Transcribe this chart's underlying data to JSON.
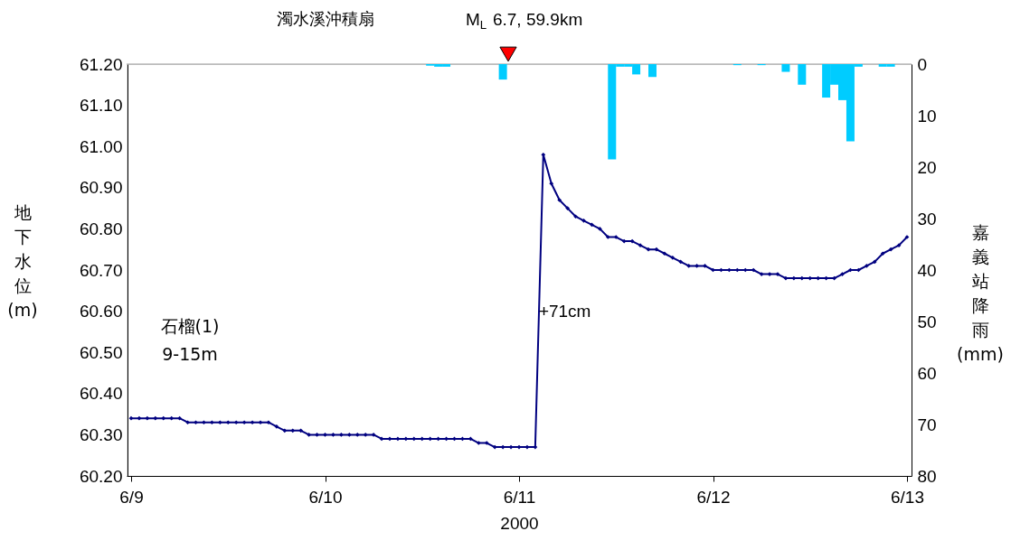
{
  "chart_data": {
    "type": "line",
    "title": "濁水溪沖積扇",
    "xlabel": "2000",
    "ylabel": "地下水位(m)",
    "y2label": "嘉義站降雨(mm)",
    "xlim": [
      "2000-06-09T00:00",
      "2000-06-13T00:00"
    ],
    "xticks": [
      {
        "value": "2000-06-09T00:00",
        "label": "6/9"
      },
      {
        "value": "2000-06-10T00:00",
        "label": "6/10"
      },
      {
        "value": "2000-06-11T00:00",
        "label": "6/11"
      },
      {
        "value": "2000-06-12T00:00",
        "label": "6/12"
      },
      {
        "value": "2000-06-13T00:00",
        "label": "6/13"
      }
    ],
    "ylim": [
      60.2,
      61.2
    ],
    "yticks": [
      {
        "value": 60.2,
        "label": "60.20"
      },
      {
        "value": 60.3,
        "label": "60.30"
      },
      {
        "value": 60.4,
        "label": "60.40"
      },
      {
        "value": 60.5,
        "label": "60.50"
      },
      {
        "value": 60.6,
        "label": "60.60"
      },
      {
        "value": 60.7,
        "label": "60.70"
      },
      {
        "value": 60.8,
        "label": "60.80"
      },
      {
        "value": 60.9,
        "label": "60.90"
      },
      {
        "value": 61.0,
        "label": "61.00"
      },
      {
        "value": 61.1,
        "label": "61.10"
      },
      {
        "value": 61.2,
        "label": "61.20"
      }
    ],
    "y2lim": [
      80,
      0
    ],
    "y2ticks": [
      0,
      10,
      20,
      30,
      40,
      50,
      60,
      70,
      80
    ],
    "grid": false,
    "marker": "diamond",
    "line_style": "solid",
    "series": [
      {
        "color": "#000080",
        "x": [
          "2000-06-09T00:00",
          "2000-06-09T01:00",
          "2000-06-09T02:00",
          "2000-06-09T03:00",
          "2000-06-09T04:00",
          "2000-06-09T05:00",
          "2000-06-09T06:00",
          "2000-06-09T07:00",
          "2000-06-09T08:00",
          "2000-06-09T09:00",
          "2000-06-09T10:00",
          "2000-06-09T11:00",
          "2000-06-09T12:00",
          "2000-06-09T13:00",
          "2000-06-09T14:00",
          "2000-06-09T15:00",
          "2000-06-09T16:00",
          "2000-06-09T17:00",
          "2000-06-09T18:00",
          "2000-06-09T19:00",
          "2000-06-09T20:00",
          "2000-06-09T21:00",
          "2000-06-09T22:00",
          "2000-06-09T23:00",
          "2000-06-10T00:00",
          "2000-06-10T01:00",
          "2000-06-10T02:00",
          "2000-06-10T03:00",
          "2000-06-10T04:00",
          "2000-06-10T05:00",
          "2000-06-10T06:00",
          "2000-06-10T07:00",
          "2000-06-10T08:00",
          "2000-06-10T09:00",
          "2000-06-10T10:00",
          "2000-06-10T11:00",
          "2000-06-10T12:00",
          "2000-06-10T13:00",
          "2000-06-10T14:00",
          "2000-06-10T15:00",
          "2000-06-10T16:00",
          "2000-06-10T17:00",
          "2000-06-10T18:00",
          "2000-06-10T19:00",
          "2000-06-10T20:00",
          "2000-06-10T21:00",
          "2000-06-10T22:00",
          "2000-06-10T23:00",
          "2000-06-11T00:00",
          "2000-06-11T01:00",
          "2000-06-11T02:00",
          "2000-06-11T03:00",
          "2000-06-11T04:00",
          "2000-06-11T05:00",
          "2000-06-11T06:00",
          "2000-06-11T07:00",
          "2000-06-11T08:00",
          "2000-06-11T09:00",
          "2000-06-11T10:00",
          "2000-06-11T11:00",
          "2000-06-11T12:00",
          "2000-06-11T13:00",
          "2000-06-11T14:00",
          "2000-06-11T15:00",
          "2000-06-11T16:00",
          "2000-06-11T17:00",
          "2000-06-11T18:00",
          "2000-06-11T19:00",
          "2000-06-11T20:00",
          "2000-06-11T21:00",
          "2000-06-11T22:00",
          "2000-06-11T23:00",
          "2000-06-12T00:00",
          "2000-06-12T01:00",
          "2000-06-12T02:00",
          "2000-06-12T03:00",
          "2000-06-12T04:00",
          "2000-06-12T05:00",
          "2000-06-12T06:00",
          "2000-06-12T07:00",
          "2000-06-12T08:00",
          "2000-06-12T09:00",
          "2000-06-12T10:00",
          "2000-06-12T11:00",
          "2000-06-12T12:00",
          "2000-06-12T13:00",
          "2000-06-12T14:00",
          "2000-06-12T15:00",
          "2000-06-12T16:00",
          "2000-06-12T17:00",
          "2000-06-12T18:00",
          "2000-06-12T19:00",
          "2000-06-12T20:00",
          "2000-06-12T21:00",
          "2000-06-12T22:00",
          "2000-06-12T23:00",
          "2000-06-13T00:00"
        ],
        "values": [
          60.34,
          60.34,
          60.34,
          60.34,
          60.34,
          60.34,
          60.34,
          60.33,
          60.33,
          60.33,
          60.33,
          60.33,
          60.33,
          60.33,
          60.33,
          60.33,
          60.33,
          60.33,
          60.32,
          60.31,
          60.31,
          60.31,
          60.3,
          60.3,
          60.3,
          60.3,
          60.3,
          60.3,
          60.3,
          60.3,
          60.3,
          60.29,
          60.29,
          60.29,
          60.29,
          60.29,
          60.29,
          60.29,
          60.29,
          60.29,
          60.29,
          60.29,
          60.29,
          60.28,
          60.28,
          60.27,
          60.27,
          60.27,
          60.27,
          60.27,
          60.27,
          60.98,
          60.91,
          60.87,
          60.85,
          60.83,
          60.82,
          60.81,
          60.8,
          60.78,
          60.78,
          60.77,
          60.77,
          60.76,
          60.75,
          60.75,
          60.74,
          60.73,
          60.72,
          60.71,
          60.71,
          60.71,
          60.7,
          60.7,
          60.7,
          60.7,
          60.7,
          60.7,
          60.69,
          60.69,
          60.69,
          60.68,
          60.68,
          60.68,
          60.68,
          60.68,
          60.68,
          60.68,
          60.69,
          60.7,
          60.7,
          60.71,
          60.72,
          60.74,
          60.75,
          60.76,
          60.78
        ]
      },
      {
        "type": "bar",
        "axis": "y2",
        "color": "#00ccff",
        "x": [
          "2000-06-10T13:00",
          "2000-06-10T14:00",
          "2000-06-10T15:00",
          "2000-06-10T22:00",
          "2000-06-11T11:30",
          "2000-06-11T12:30",
          "2000-06-11T13:30",
          "2000-06-11T14:30",
          "2000-06-11T16:30",
          "2000-06-12T03:00",
          "2000-06-12T06:00",
          "2000-06-12T09:00",
          "2000-06-12T11:00",
          "2000-06-12T14:00",
          "2000-06-12T15:00",
          "2000-06-12T16:00",
          "2000-06-12T17:00",
          "2000-06-12T18:00",
          "2000-06-12T21:00",
          "2000-06-12T22:00"
        ],
        "values": [
          0.3,
          0.5,
          0.5,
          3,
          18.5,
          0.5,
          0.5,
          2,
          2.5,
          0.2,
          0.2,
          1.5,
          4,
          6.5,
          4,
          7,
          15,
          0.5,
          0.5,
          0.5
        ]
      }
    ],
    "annotations": [
      "石榴(1)",
      "9-15m",
      {
        "text": "+71cm",
        "x": "2000-06-11T02:00",
        "y": 60.6
      },
      "M$_{L}$ 6.7, 59.9km"
    ]
  }
}
